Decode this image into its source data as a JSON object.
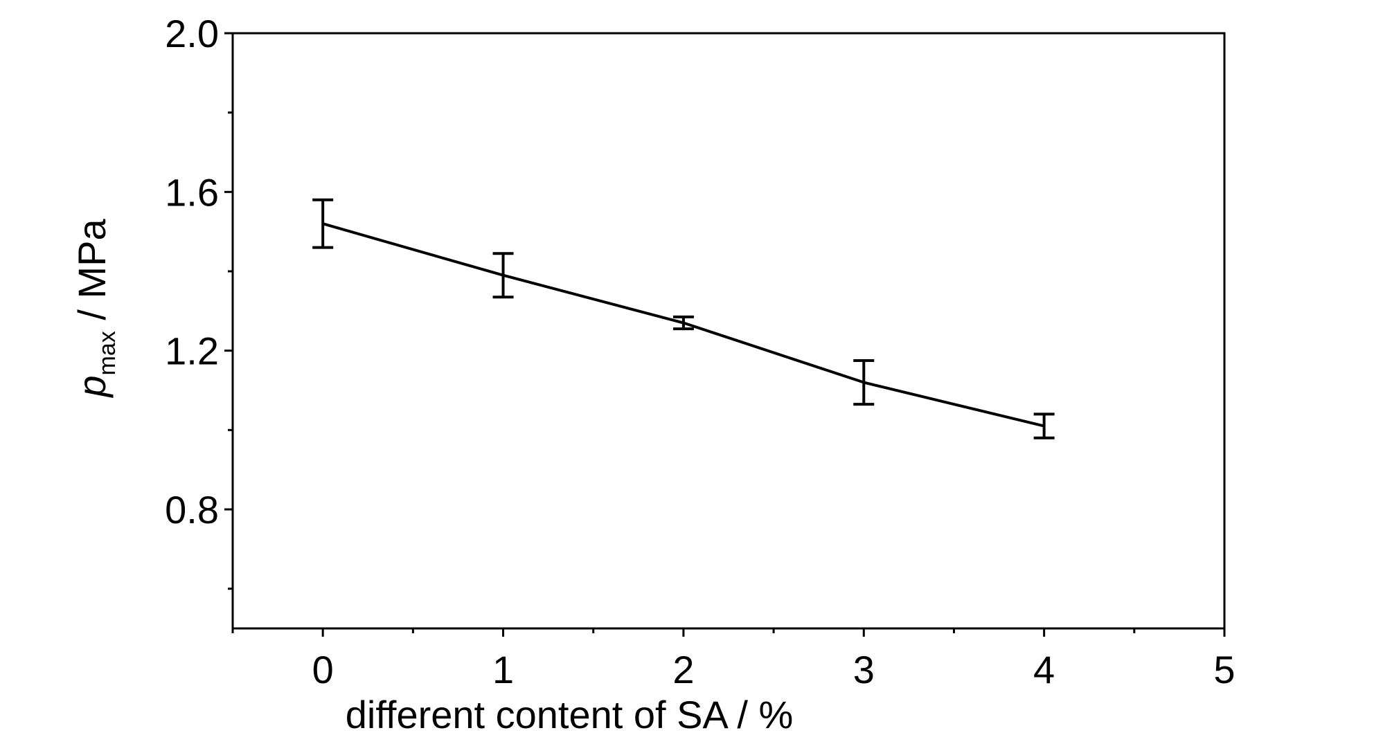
{
  "chart_data": {
    "type": "line",
    "xlabel": "different content of SA / %",
    "ylabel": {
      "symbol": "p",
      "subscript": "max",
      "unit": " / MPa"
    },
    "xlim": [
      -0.5,
      5
    ],
    "ylim": [
      0.5,
      2.0
    ],
    "x_ticks": [
      0,
      1,
      2,
      3,
      4,
      5
    ],
    "x_tick_labels": [
      "0",
      "1",
      "2",
      "3",
      "4",
      "5"
    ],
    "y_ticks": [
      0.8,
      1.2,
      1.6,
      2.0
    ],
    "y_tick_labels": [
      "0.8",
      "1.2",
      "1.6",
      "2.0"
    ],
    "x_minor_ticks": [
      -0.5,
      0.5,
      1.5,
      2.5,
      3.5,
      4.5
    ],
    "y_minor_ticks": [
      0.6,
      1.0,
      1.4,
      1.8
    ],
    "grid": false,
    "series": [
      {
        "x": [
          0,
          1,
          2,
          3,
          4
        ],
        "y": [
          1.52,
          1.39,
          1.27,
          1.12,
          1.01
        ],
        "error": [
          0.06,
          0.055,
          0.015,
          0.055,
          0.03
        ],
        "color": "#000000"
      }
    ]
  }
}
